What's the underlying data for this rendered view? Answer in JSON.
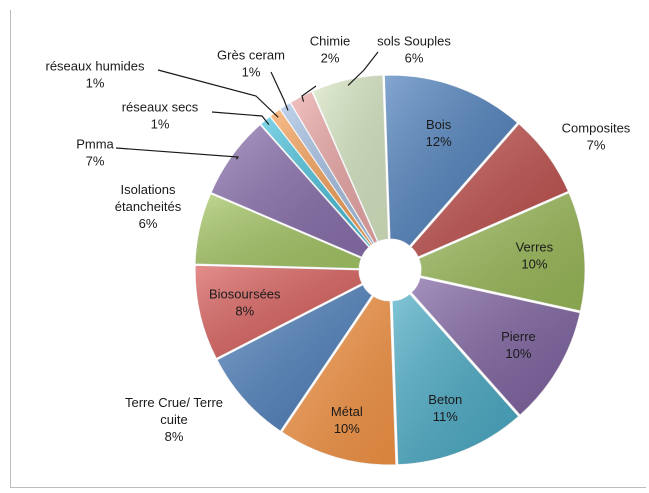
{
  "chart_data": {
    "type": "pie",
    "exploded": true,
    "slices": [
      {
        "label": "Bois",
        "value": 12,
        "value_label": "12%",
        "color": "#4f81bd"
      },
      {
        "label": "Composites",
        "value": 7,
        "value_label": "7%",
        "color": "#c0504d"
      },
      {
        "label": "Verres",
        "value": 10,
        "value_label": "10%",
        "color": "#9bbb59"
      },
      {
        "label": "Pierre",
        "value": 10,
        "value_label": "10%",
        "color": "#8064a2"
      },
      {
        "label": "Beton",
        "value": 11,
        "value_label": "11%",
        "color": "#4bacc6"
      },
      {
        "label": "Métal",
        "value": 10,
        "value_label": "10%",
        "color": "#f79646"
      },
      {
        "label": "Terre Crue/ Terre cuite",
        "value": 8,
        "value_label": "8%",
        "color": "#4f81bd"
      },
      {
        "label": "Biosoursées",
        "value": 8,
        "value_label": "8%",
        "color": "#d95f5c"
      },
      {
        "label": "Isolations étancheités",
        "value": 6,
        "value_label": "6%",
        "color": "#a6c866"
      },
      {
        "label": "Pmma",
        "value": 7,
        "value_label": "7%",
        "color": "#8a70ae"
      },
      {
        "label": "réseaux secs",
        "value": 1,
        "value_label": "1%",
        "color": "#4cc3dd"
      },
      {
        "label": "réseaux humides",
        "value": 1,
        "value_label": "1%",
        "color": "#f7a25a"
      },
      {
        "label": "Grès ceram",
        "value": 1,
        "value_label": "1%",
        "color": "#a7c2e6"
      },
      {
        "label": "Chimie",
        "value": 2,
        "value_label": "2%",
        "color": "#eda9a8"
      },
      {
        "label": "sols Souples",
        "value": 6,
        "value_label": "6%",
        "color": "#d9e8c4"
      }
    ]
  }
}
